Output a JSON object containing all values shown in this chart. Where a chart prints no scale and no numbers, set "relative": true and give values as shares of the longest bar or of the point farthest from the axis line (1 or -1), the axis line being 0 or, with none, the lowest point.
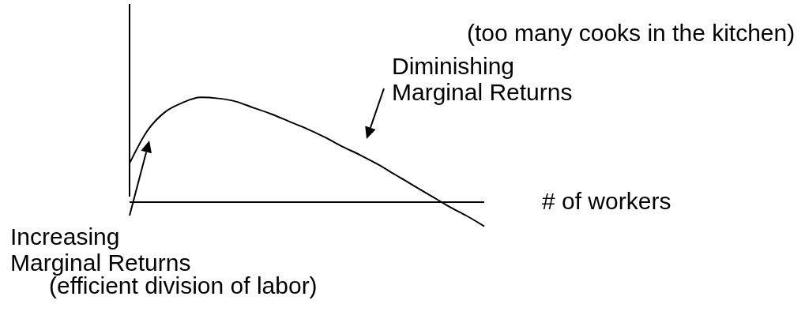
{
  "chart_data": {
    "type": "line",
    "relative": true,
    "xlabel": "# of workers",
    "categories": [
      null,
      null,
      null,
      null,
      null,
      null,
      null,
      null,
      null,
      null,
      null,
      null,
      null,
      null,
      null,
      null,
      null,
      null,
      null,
      null,
      null
    ],
    "values": [
      0.37,
      0.68,
      0.86,
      0.95,
      1,
      0.99,
      0.96,
      0.9,
      0.84,
      0.77,
      0.7,
      0.62,
      0.53,
      0.45,
      0.36,
      0.26,
      0.16,
      0.06,
      -0.04,
      -0.13,
      -0.23
    ],
    "color": "#000000",
    "annotations": [
      "(too many cooks in the kitchen)",
      "Diminishing Marginal Returns",
      "Increasing Marginal Returns",
      "(efficient division of labor)"
    ]
  }
}
